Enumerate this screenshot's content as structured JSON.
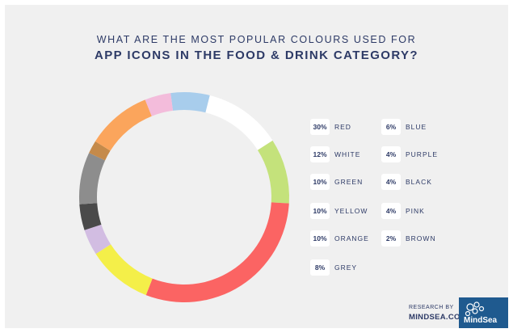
{
  "chart_data": {
    "type": "pie",
    "title": "WHAT ARE THE MOST POPULAR COLOURS USED FOR",
    "subtitle": "APP ICONS IN THE FOOD & DRINK CATEGORY?",
    "slices": [
      {
        "label": "RED",
        "pct_label": "30%",
        "value": 30,
        "color": "#fb6463"
      },
      {
        "label": "WHITE",
        "pct_label": "12%",
        "value": 12,
        "color": "#ffffff"
      },
      {
        "label": "GREEN",
        "pct_label": "10%",
        "value": 10,
        "color": "#c4e27b"
      },
      {
        "label": "YELLOW",
        "pct_label": "10%",
        "value": 10,
        "color": "#f4ef49"
      },
      {
        "label": "ORANGE",
        "pct_label": "10%",
        "value": 10,
        "color": "#fba55c"
      },
      {
        "label": "GREY",
        "pct_label": "8%",
        "value": 8,
        "color": "#8d8d8d"
      },
      {
        "label": "BLUE",
        "pct_label": "6%",
        "value": 6,
        "color": "#a8cdec"
      },
      {
        "label": "PURPLE",
        "pct_label": "4%",
        "value": 4,
        "color": "#d2bde2"
      },
      {
        "label": "BLACK",
        "pct_label": "4%",
        "value": 4,
        "color": "#4a4a4a"
      },
      {
        "label": "PINK",
        "pct_label": "4%",
        "value": 4,
        "color": "#f3bcdb"
      },
      {
        "label": "BROWN",
        "pct_label": "2%",
        "value": 2,
        "color": "#c58a4a"
      }
    ],
    "ring_order": [
      "BLUE",
      "WHITE",
      "GREEN",
      "RED",
      "YELLOW",
      "PURPLE",
      "BLACK",
      "GREY",
      "BROWN",
      "ORANGE",
      "PINK"
    ],
    "legend_position": "right"
  },
  "footer": {
    "research_by": "RESEARCH BY",
    "site": "MINDSEA.COM",
    "logo_text": "MindSea"
  }
}
